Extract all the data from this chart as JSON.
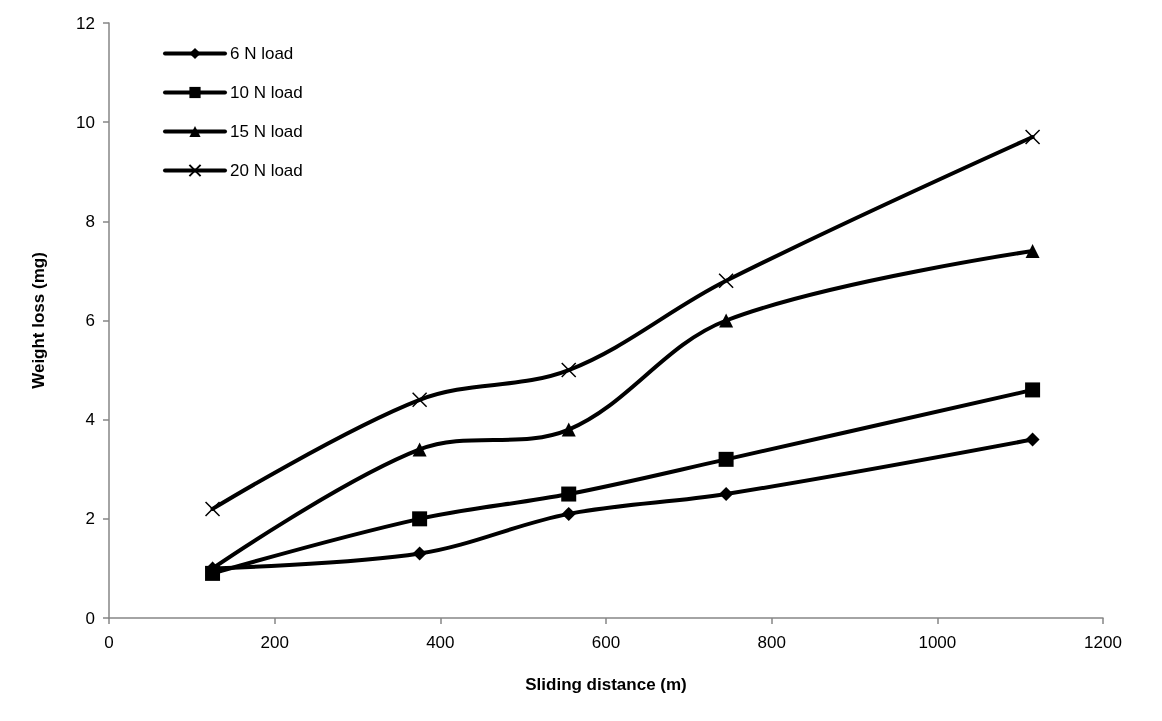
{
  "chart_data": {
    "type": "line",
    "xlabel": "Sliding distance (m)",
    "ylabel": "Weight loss (mg)",
    "x": [
      125,
      375,
      555,
      745,
      1115
    ],
    "series": [
      {
        "name": "6 N load",
        "color": "#000000",
        "marker": "diamond",
        "values": [
          1.0,
          1.3,
          2.1,
          2.5,
          3.6
        ]
      },
      {
        "name": "10 N load",
        "color": "#000000",
        "marker": "square",
        "values": [
          0.9,
          2.0,
          2.5,
          3.2,
          4.6
        ]
      },
      {
        "name": "15 N load",
        "color": "#000000",
        "marker": "triangle",
        "values": [
          1.0,
          3.4,
          3.8,
          6.0,
          7.4
        ]
      },
      {
        "name": "20 N load",
        "color": "#000000",
        "marker": "cross",
        "values": [
          2.2,
          4.4,
          5.0,
          6.8,
          9.7
        ]
      }
    ],
    "xlim": [
      0,
      1200
    ],
    "xticks": [
      0,
      200,
      400,
      600,
      800,
      1000,
      1200
    ],
    "ylim": [
      0,
      12
    ],
    "yticks": [
      0,
      2,
      4,
      6,
      8,
      10,
      12
    ],
    "grid": false,
    "legend": "top left",
    "line_style": "solid"
  }
}
